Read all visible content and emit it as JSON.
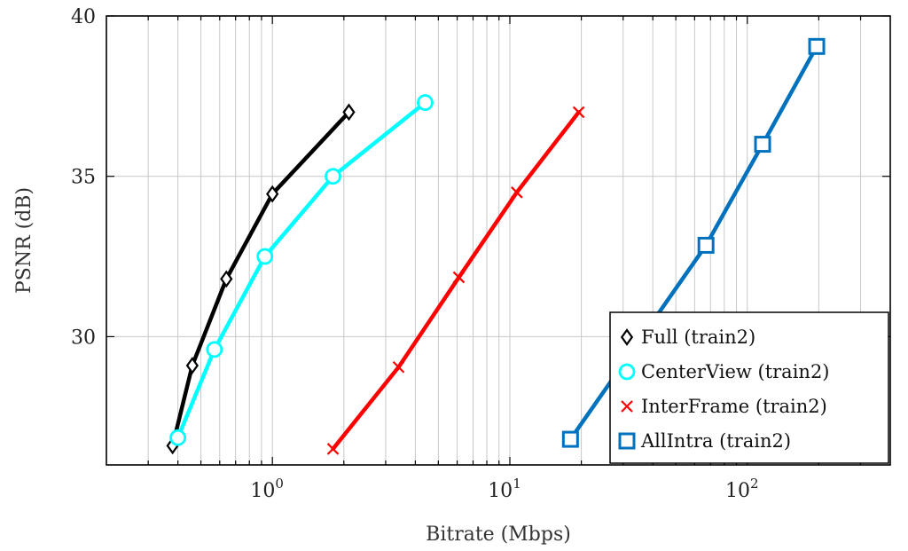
{
  "chart_data": {
    "type": "line",
    "xlabel": "Bitrate (Mbps)",
    "ylabel": "PSNR (dB)",
    "xscale": "log",
    "xlim": [
      0.2,
      400
    ],
    "ylim": [
      26.0,
      40
    ],
    "yticks": [
      30,
      35,
      40
    ],
    "xticks": [
      1,
      10,
      100
    ],
    "xtick_labels": [
      {
        "base": "10",
        "exp": "0"
      },
      {
        "base": "10",
        "exp": "1"
      },
      {
        "base": "10",
        "exp": "2"
      }
    ],
    "grid": true,
    "legend_position": "bottom-right",
    "series": [
      {
        "name": "Full (train2)",
        "color": "#000000",
        "marker": "diamond",
        "x": [
          0.38,
          0.46,
          0.64,
          1.0,
          2.1
        ],
        "y": [
          26.6,
          29.1,
          31.8,
          34.45,
          37.0
        ]
      },
      {
        "name": "CenterView (train2)",
        "color": "#00ffff",
        "marker": "circle",
        "x": [
          0.4,
          0.57,
          0.93,
          1.8,
          4.4
        ],
        "y": [
          26.85,
          29.6,
          32.5,
          35.0,
          37.3
        ]
      },
      {
        "name": "InterFrame (train2)",
        "color": "#ff0000",
        "marker": "x",
        "x": [
          1.8,
          3.4,
          6.1,
          10.7,
          19.5
        ],
        "y": [
          26.5,
          29.05,
          31.85,
          34.5,
          37.0
        ]
      },
      {
        "name": "AllIntra (train2)",
        "color": "#0072bd",
        "marker": "square",
        "x": [
          18.0,
          67.0,
          116.0,
          196.0
        ],
        "y": [
          26.8,
          32.85,
          36.0,
          39.05
        ]
      }
    ]
  }
}
